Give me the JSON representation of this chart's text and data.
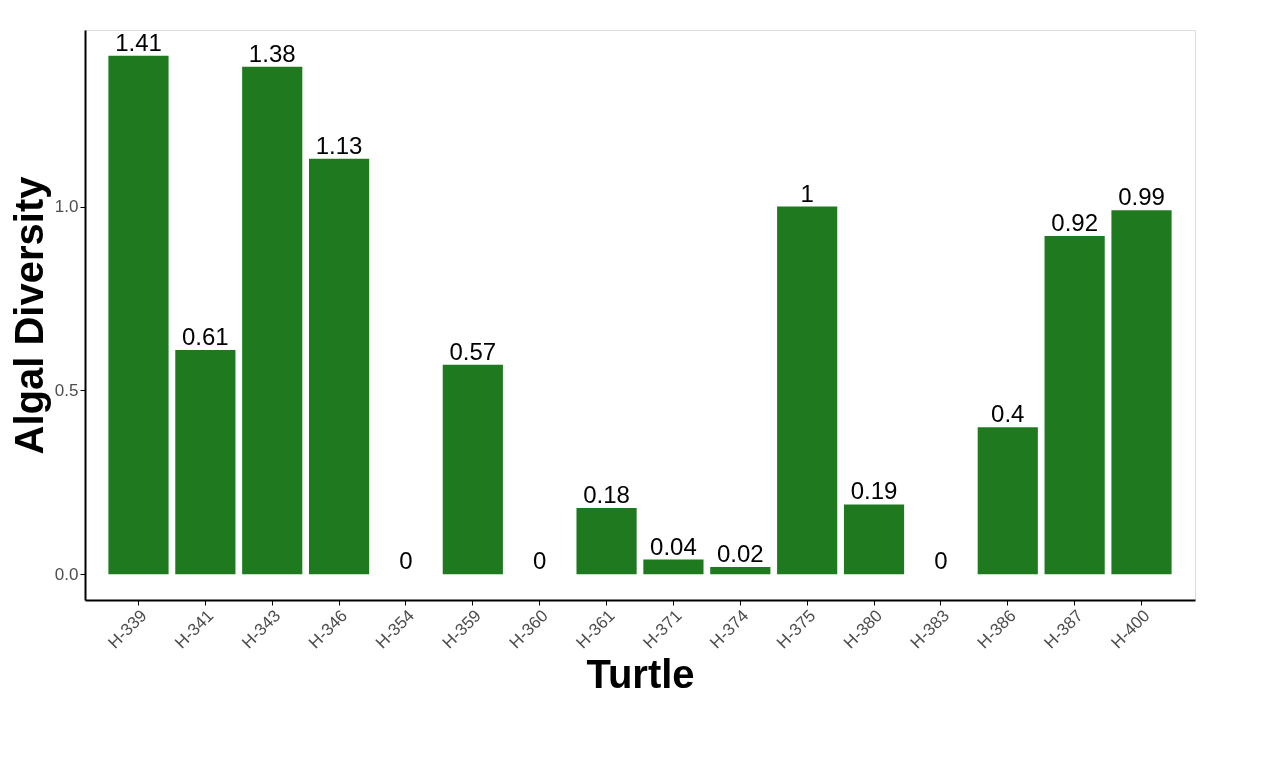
{
  "chart_data": {
    "type": "bar",
    "xlabel": "Turtle",
    "ylabel": "Algal Diversity",
    "categories": [
      "H-339",
      "H-341",
      "H-343",
      "H-346",
      "H-354",
      "H-359",
      "H-360",
      "H-361",
      "H-371",
      "H-374",
      "H-375",
      "H-380",
      "H-383",
      "H-386",
      "H-387",
      "H-400"
    ],
    "values": [
      1.41,
      0.61,
      1.38,
      1.13,
      0,
      0.57,
      0,
      0.18,
      0.04,
      0.02,
      1,
      0.19,
      0,
      0.4,
      0.92,
      0.99
    ],
    "color": "#1f7a1f",
    "ylim": [
      -0.07,
      1.48
    ],
    "yticks": [
      {
        "value": 0,
        "label": "0.0"
      },
      {
        "value": 0.5,
        "label": "0.5"
      },
      {
        "value": 1,
        "label": "1.0"
      }
    ],
    "data_labels": true
  }
}
